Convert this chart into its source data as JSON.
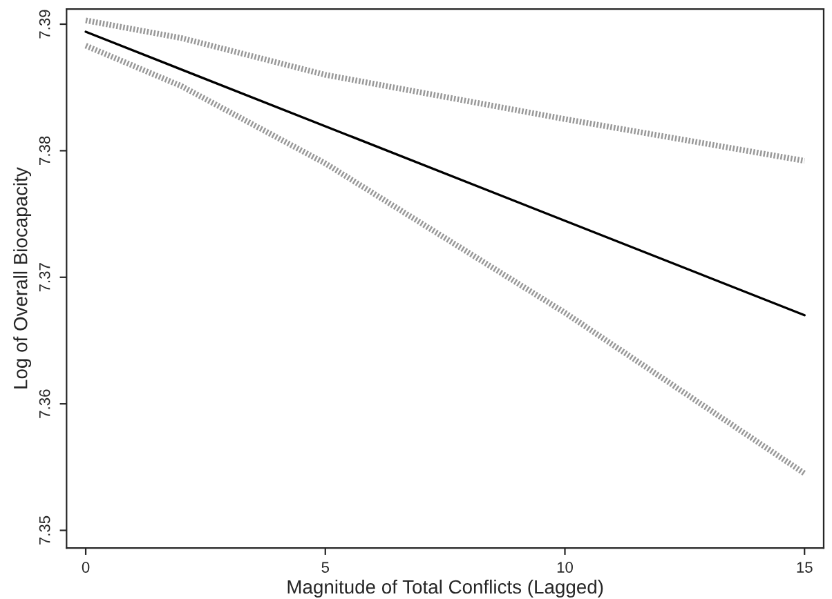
{
  "chart_data": {
    "type": "line",
    "xlabel": "Magnitude of Total Conflicts (Lagged)",
    "ylabel": "Log of Overall Biocapacity",
    "xlim": [
      -0.4,
      15.4
    ],
    "ylim": [
      7.3486,
      7.3912
    ],
    "xticks": [
      0,
      5,
      10,
      15
    ],
    "yticks": [
      7.35,
      7.36,
      7.37,
      7.38,
      7.39
    ],
    "grid": false,
    "legend": false,
    "series": [
      {
        "color": "#000000",
        "line_style": "solid",
        "x": [
          0,
          15
        ],
        "values": [
          7.3894,
          7.367
        ]
      },
      {
        "color": "#999999",
        "line_style": "dotted",
        "x": [
          0,
          2,
          5,
          10,
          15
        ],
        "values": [
          7.3903,
          7.3889,
          7.386,
          7.3825,
          7.3792
        ]
      },
      {
        "color": "#999999",
        "line_style": "dotted",
        "x": [
          0,
          2,
          5,
          10,
          15
        ],
        "values": [
          7.3883,
          7.3851,
          7.379,
          7.3672,
          7.3545
        ]
      }
    ]
  }
}
